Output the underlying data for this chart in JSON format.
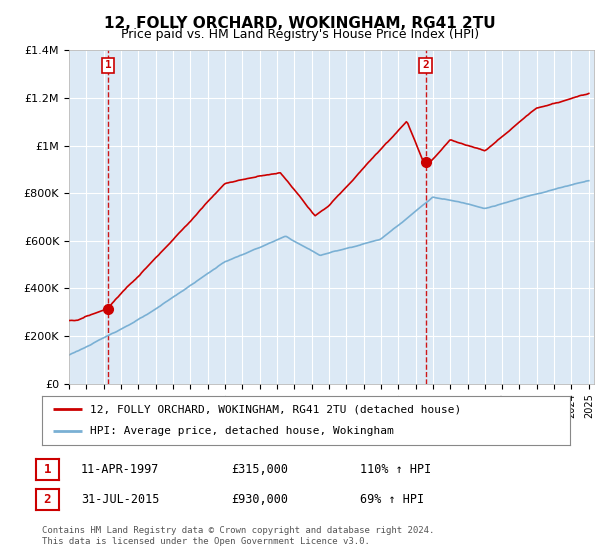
{
  "title": "12, FOLLY ORCHARD, WOKINGHAM, RG41 2TU",
  "subtitle": "Price paid vs. HM Land Registry's House Price Index (HPI)",
  "ylim": [
    0,
    1400000
  ],
  "yticks": [
    0,
    200000,
    400000,
    600000,
    800000,
    1000000,
    1200000,
    1400000
  ],
  "ytick_labels": [
    "£0",
    "£200K",
    "£400K",
    "£600K",
    "£800K",
    "£1M",
    "£1.2M",
    "£1.4M"
  ],
  "sale1_price": 315000,
  "sale1_x": 1997.27,
  "sale1_label": "1",
  "sale2_price": 930000,
  "sale2_x": 2015.58,
  "sale2_label": "2",
  "legend_line1": "12, FOLLY ORCHARD, WOKINGHAM, RG41 2TU (detached house)",
  "legend_line2": "HPI: Average price, detached house, Wokingham",
  "table_row1": [
    "1",
    "11-APR-1997",
    "£315,000",
    "110% ↑ HPI"
  ],
  "table_row2": [
    "2",
    "31-JUL-2015",
    "£930,000",
    "69% ↑ HPI"
  ],
  "footer": "Contains HM Land Registry data © Crown copyright and database right 2024.\nThis data is licensed under the Open Government Licence v3.0.",
  "line_color_red": "#cc0000",
  "line_color_blue": "#7ab0d4",
  "vline_color": "#cc0000",
  "plot_bg": "#dce9f5",
  "background_color": "#ffffff",
  "grid_color": "#ffffff"
}
